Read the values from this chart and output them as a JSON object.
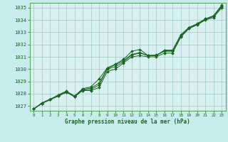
{
  "xlabel": "Graphe pression niveau de la mer (hPa)",
  "xlim": [
    -0.5,
    23.5
  ],
  "ylim": [
    1026.6,
    1035.4
  ],
  "yticks": [
    1027,
    1028,
    1029,
    1030,
    1031,
    1032,
    1033,
    1034,
    1035
  ],
  "xticks": [
    0,
    1,
    2,
    3,
    4,
    5,
    6,
    7,
    8,
    9,
    10,
    11,
    12,
    13,
    14,
    15,
    16,
    17,
    18,
    19,
    20,
    21,
    22,
    23
  ],
  "bg_color": "#c8ecec",
  "plot_bg_color": "#d8f0f0",
  "grid_color": "#a0cac8",
  "line_color": "#1a6620",
  "marker_color": "#1a6620",
  "border_color": "#5aaa60",
  "lines": [
    [
      1026.75,
      1027.2,
      1027.5,
      1027.8,
      1028.1,
      1027.75,
      1028.25,
      1028.25,
      1028.5,
      1029.8,
      1030.0,
      1030.5,
      1031.0,
      1031.1,
      1031.0,
      1031.0,
      1031.3,
      1031.3,
      1032.6,
      1033.3,
      1033.6,
      1034.0,
      1034.2,
      1035.0
    ],
    [
      1026.75,
      1027.2,
      1027.5,
      1027.8,
      1028.15,
      1027.75,
      1028.3,
      1028.35,
      1028.7,
      1030.0,
      1030.2,
      1030.6,
      1031.15,
      1031.3,
      1031.1,
      1031.1,
      1031.5,
      1031.5,
      1032.7,
      1033.35,
      1033.65,
      1034.05,
      1034.3,
      1035.1
    ],
    [
      1026.75,
      1027.2,
      1027.5,
      1027.9,
      1028.2,
      1027.8,
      1028.4,
      1028.55,
      1029.2,
      1030.1,
      1030.4,
      1030.8,
      1031.45,
      1031.6,
      1031.1,
      1031.1,
      1031.55,
      1031.55,
      1032.8,
      1033.4,
      1033.7,
      1034.1,
      1034.35,
      1035.2
    ],
    [
      1026.75,
      1027.25,
      1027.55,
      1027.85,
      1028.15,
      1027.8,
      1028.35,
      1028.45,
      1028.85,
      1030.05,
      1030.35,
      1030.7,
      1031.2,
      1031.35,
      1031.1,
      1031.15,
      1031.45,
      1031.45,
      1032.7,
      1033.35,
      1033.65,
      1034.05,
      1034.3,
      1035.1
    ]
  ]
}
